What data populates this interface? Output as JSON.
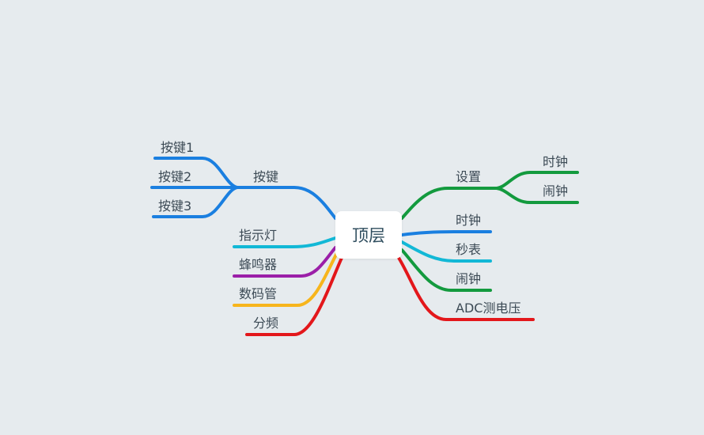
{
  "root": {
    "label": "顶层"
  },
  "colors": {
    "blue": "#1a7fe0",
    "cyan": "#12b8d6",
    "purple": "#9b1fa8",
    "orange": "#f7b51c",
    "red": "#e3171b",
    "green": "#139a3e"
  },
  "left_branches": {
    "keys": {
      "label": "按键",
      "children": [
        "按键1",
        "按键2",
        "按键3"
      ]
    },
    "indicator": {
      "label": "指示灯"
    },
    "buzzer": {
      "label": "蜂鸣器"
    },
    "digit_tube": {
      "label": "数码管"
    },
    "divider": {
      "label": "分频"
    }
  },
  "right_branches": {
    "settings": {
      "label": "设置",
      "children": [
        "时钟",
        "闹钟"
      ]
    },
    "clock": {
      "label": "时钟"
    },
    "stopwatch": {
      "label": "秒表"
    },
    "alarm": {
      "label": "闹钟"
    },
    "adc": {
      "label": "ADC测电压"
    }
  }
}
